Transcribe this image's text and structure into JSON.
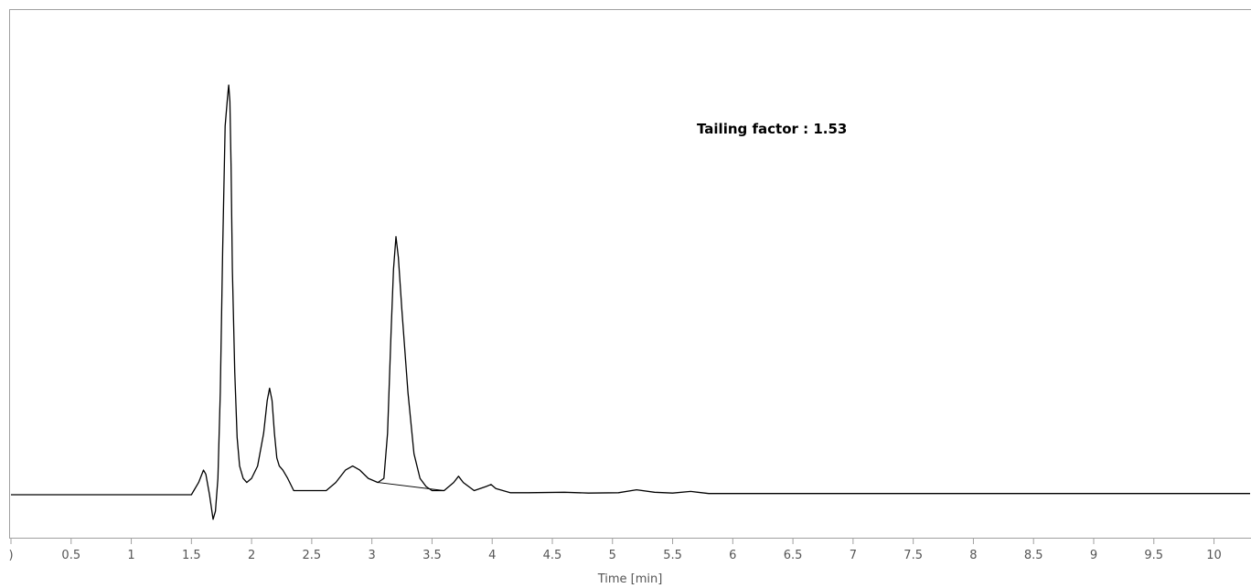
{
  "chart_data": {
    "type": "line",
    "title": "",
    "xlabel": "Time [min]",
    "ylabel": "",
    "xlim": [
      0,
      10.3
    ],
    "ylim": [
      -0.1,
      1.0
    ],
    "x_ticks": [
      0,
      0.5,
      1,
      1.5,
      2,
      2.5,
      3,
      3.5,
      4,
      4.5,
      5,
      5.5,
      6,
      6.5,
      7,
      7.5,
      8,
      8.5,
      9,
      9.5,
      10
    ],
    "x_tick_labels": [
      ")",
      "0.5",
      "1",
      "1.5",
      "2",
      "2.5",
      "3",
      "3.5",
      "4",
      "4.5",
      "5",
      "5.5",
      "6",
      "6.5",
      "7",
      "7.5",
      "8",
      "8.5",
      "9",
      "9.5",
      "10"
    ],
    "grid": false,
    "legend": "none",
    "annotation": "Tailing factor : 1.53",
    "series": [
      {
        "color": "#000000",
        "x": [
          0,
          0.3,
          1.5,
          1.56,
          1.6,
          1.62,
          1.65,
          1.68,
          1.7,
          1.72,
          1.74,
          1.76,
          1.78,
          1.8,
          1.81,
          1.82,
          1.83,
          1.84,
          1.86,
          1.88,
          1.9,
          1.93,
          1.96,
          2.0,
          2.05,
          2.1,
          2.13,
          2.15,
          2.17,
          2.19,
          2.21,
          2.23,
          2.26,
          2.3,
          2.35,
          2.45,
          2.5,
          2.55,
          2.62,
          2.7,
          2.78,
          2.84,
          2.9,
          2.97,
          3.05,
          3.1,
          3.13,
          3.16,
          3.18,
          3.2,
          3.22,
          3.25,
          3.3,
          3.35,
          3.4,
          3.45,
          3.5,
          3.6,
          3.68,
          3.72,
          3.76,
          3.85,
          3.95,
          3.99,
          4.03,
          4.15,
          4.3,
          4.6,
          4.8,
          5.05,
          5.2,
          5.35,
          5.5,
          5.65,
          5.8,
          6.2,
          7.0,
          8.0,
          9.0,
          10.0,
          10.3
        ],
        "values": [
          0.0,
          0.0,
          0.0,
          0.03,
          0.06,
          0.05,
          0.0,
          -0.06,
          -0.04,
          0.04,
          0.25,
          0.6,
          0.9,
          0.97,
          1.0,
          0.96,
          0.8,
          0.55,
          0.3,
          0.14,
          0.07,
          0.04,
          0.03,
          0.04,
          0.07,
          0.15,
          0.23,
          0.26,
          0.23,
          0.15,
          0.09,
          0.07,
          0.06,
          0.04,
          0.01,
          0.01,
          0.01,
          0.01,
          0.01,
          0.03,
          0.06,
          0.07,
          0.06,
          0.04,
          0.03,
          0.04,
          0.15,
          0.4,
          0.55,
          0.63,
          0.58,
          0.45,
          0.25,
          0.1,
          0.04,
          0.02,
          0.01,
          0.01,
          0.03,
          0.045,
          0.03,
          0.01,
          0.02,
          0.025,
          0.015,
          0.005,
          0.005,
          0.006,
          0.004,
          0.005,
          0.012,
          0.006,
          0.004,
          0.008,
          0.003,
          0.003,
          0.003,
          0.003,
          0.003,
          0.003,
          0.003
        ]
      }
    ],
    "baseline_segment": {
      "x": [
        3.05,
        3.6
      ],
      "values": [
        0.03,
        0.01
      ]
    }
  }
}
